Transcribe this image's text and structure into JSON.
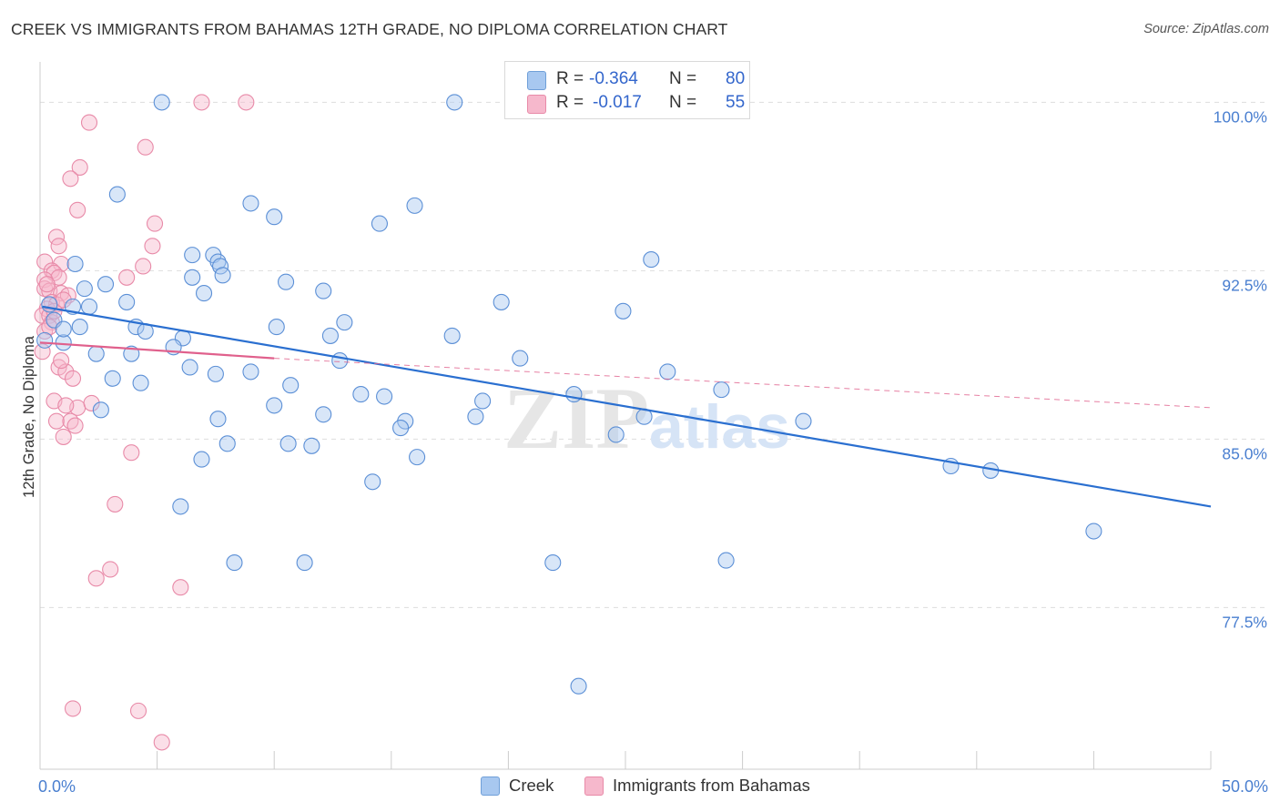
{
  "title": "CREEK VS IMMIGRANTS FROM BAHAMAS 12TH GRADE, NO DIPLOMA CORRELATION CHART",
  "source": "Source: ZipAtlas.com",
  "watermark": {
    "part1": "ZIP",
    "part2": "atlas"
  },
  "legend_top": {
    "rows": [
      {
        "r_label": "R =",
        "r_value": "-0.364",
        "n_label": "N =",
        "n_value": "80",
        "color": "#a8c8f0",
        "stroke": "#6f9fd8"
      },
      {
        "r_label": "R =",
        "r_value": "-0.017",
        "n_label": "N =",
        "n_value": "55",
        "color": "#f6b8cc",
        "stroke": "#e88aa8"
      }
    ]
  },
  "legend_bottom": [
    {
      "label": "Creek",
      "color": "#a8c8f0",
      "stroke": "#6f9fd8"
    },
    {
      "label": "Immigrants from Bahamas",
      "color": "#f6b8cc",
      "stroke": "#e88aa8"
    }
  ],
  "colors": {
    "creek": "#5b8fd6",
    "creek_line": "#2a6fd0",
    "bahamas": "#e99ab4",
    "bahamas_line": "#e0608c",
    "axis_text": "#4a7fd0",
    "grid": "#dddddd"
  },
  "chart_data": {
    "type": "scatter",
    "title": "CREEK VS IMMIGRANTS FROM BAHAMAS 12TH GRADE, NO DIPLOMA CORRELATION CHART",
    "xlabel": "",
    "ylabel": "12th Grade, No Diploma",
    "xlim": [
      0,
      50
    ],
    "ylim": [
      70.3,
      101.8
    ],
    "x_tick_labels": [
      "0.0%",
      "50.0%"
    ],
    "y_ticks": [
      77.5,
      85.0,
      92.5,
      100.0
    ],
    "y_tick_labels": [
      "77.5%",
      "85.0%",
      "92.5%",
      "100.0%"
    ],
    "series": [
      {
        "name": "Creek",
        "r": -0.364,
        "n": 80,
        "trend": {
          "x": [
            0.1,
            50.0
          ],
          "y": [
            90.9,
            82.0
          ],
          "dashed_extension": false
        },
        "points": [
          [
            5.2,
            100.0
          ],
          [
            17.7,
            100.0
          ],
          [
            3.3,
            95.9
          ],
          [
            9.0,
            95.5
          ],
          [
            10.0,
            94.9
          ],
          [
            16.0,
            95.4
          ],
          [
            14.5,
            94.6
          ],
          [
            6.5,
            93.2
          ],
          [
            7.4,
            93.2
          ],
          [
            7.6,
            92.9
          ],
          [
            7.7,
            92.7
          ],
          [
            6.5,
            92.2
          ],
          [
            26.1,
            93.0
          ],
          [
            1.5,
            92.8
          ],
          [
            7.8,
            92.3
          ],
          [
            10.5,
            92.0
          ],
          [
            2.8,
            91.9
          ],
          [
            1.9,
            91.7
          ],
          [
            7.0,
            91.5
          ],
          [
            19.7,
            91.1
          ],
          [
            3.7,
            91.1
          ],
          [
            1.4,
            90.9
          ],
          [
            0.4,
            91.0
          ],
          [
            2.1,
            90.9
          ],
          [
            0.6,
            90.3
          ],
          [
            1.7,
            90.0
          ],
          [
            4.1,
            90.0
          ],
          [
            10.1,
            90.0
          ],
          [
            24.9,
            90.7
          ],
          [
            4.5,
            89.8
          ],
          [
            12.4,
            89.6
          ],
          [
            6.1,
            89.5
          ],
          [
            1.0,
            89.3
          ],
          [
            5.7,
            89.1
          ],
          [
            2.4,
            88.8
          ],
          [
            3.9,
            88.8
          ],
          [
            12.8,
            88.5
          ],
          [
            6.4,
            88.2
          ],
          [
            7.5,
            87.9
          ],
          [
            9.0,
            88.0
          ],
          [
            3.1,
            87.7
          ],
          [
            4.3,
            87.5
          ],
          [
            10.7,
            87.4
          ],
          [
            29.1,
            87.2
          ],
          [
            13.7,
            87.0
          ],
          [
            14.7,
            86.9
          ],
          [
            22.8,
            87.0
          ],
          [
            18.9,
            86.7
          ],
          [
            10.0,
            86.5
          ],
          [
            2.6,
            86.3
          ],
          [
            7.6,
            85.9
          ],
          [
            12.1,
            86.1
          ],
          [
            15.6,
            85.8
          ],
          [
            18.6,
            86.0
          ],
          [
            25.8,
            86.0
          ],
          [
            32.6,
            85.8
          ],
          [
            15.4,
            85.5
          ],
          [
            24.6,
            85.2
          ],
          [
            8.0,
            84.8
          ],
          [
            10.6,
            84.8
          ],
          [
            11.6,
            84.7
          ],
          [
            6.9,
            84.1
          ],
          [
            16.1,
            84.2
          ],
          [
            38.9,
            83.8
          ],
          [
            40.6,
            83.6
          ],
          [
            14.2,
            83.1
          ],
          [
            6.0,
            82.0
          ],
          [
            45.0,
            80.9
          ],
          [
            8.3,
            79.5
          ],
          [
            11.3,
            79.5
          ],
          [
            21.9,
            79.5
          ],
          [
            29.3,
            79.6
          ],
          [
            23.0,
            74.0
          ],
          [
            17.6,
            89.6
          ],
          [
            13.0,
            90.2
          ],
          [
            20.5,
            88.6
          ],
          [
            26.8,
            88.0
          ],
          [
            0.2,
            89.4
          ],
          [
            1.0,
            89.9
          ],
          [
            12.1,
            91.6
          ]
        ]
      },
      {
        "name": "Immigrants from Bahamas",
        "r": -0.017,
        "n": 55,
        "trend": {
          "x": [
            0.0,
            10.0
          ],
          "y": [
            89.3,
            88.6
          ],
          "dashed_extension_to": [
            50.0,
            86.4
          ]
        },
        "points": [
          [
            6.9,
            100.0
          ],
          [
            8.8,
            100.0
          ],
          [
            2.1,
            99.1
          ],
          [
            4.5,
            98.0
          ],
          [
            1.7,
            97.1
          ],
          [
            1.3,
            96.6
          ],
          [
            1.6,
            95.2
          ],
          [
            4.9,
            94.6
          ],
          [
            0.7,
            94.0
          ],
          [
            0.8,
            93.6
          ],
          [
            4.8,
            93.6
          ],
          [
            0.2,
            92.9
          ],
          [
            0.9,
            92.8
          ],
          [
            4.4,
            92.7
          ],
          [
            0.5,
            92.5
          ],
          [
            0.6,
            92.4
          ],
          [
            0.8,
            92.2
          ],
          [
            3.7,
            92.2
          ],
          [
            0.2,
            92.1
          ],
          [
            0.2,
            91.7
          ],
          [
            0.4,
            91.6
          ],
          [
            0.9,
            91.5
          ],
          [
            1.2,
            91.4
          ],
          [
            0.5,
            91.1
          ],
          [
            0.7,
            91.0
          ],
          [
            0.3,
            90.8
          ],
          [
            0.1,
            90.5
          ],
          [
            0.4,
            90.5
          ],
          [
            0.5,
            90.2
          ],
          [
            0.2,
            89.8
          ],
          [
            0.1,
            88.9
          ],
          [
            0.8,
            88.2
          ],
          [
            1.1,
            88.0
          ],
          [
            1.4,
            87.7
          ],
          [
            0.6,
            86.7
          ],
          [
            1.6,
            86.4
          ],
          [
            1.1,
            86.5
          ],
          [
            2.2,
            86.6
          ],
          [
            0.7,
            85.8
          ],
          [
            1.3,
            85.8
          ],
          [
            1.5,
            85.6
          ],
          [
            1.0,
            85.1
          ],
          [
            3.9,
            84.4
          ],
          [
            3.2,
            82.1
          ],
          [
            3.0,
            79.2
          ],
          [
            2.4,
            78.8
          ],
          [
            6.0,
            78.4
          ],
          [
            1.4,
            73.0
          ],
          [
            4.2,
            72.9
          ],
          [
            5.2,
            71.5
          ],
          [
            0.3,
            91.9
          ],
          [
            0.6,
            90.7
          ],
          [
            1.0,
            91.2
          ],
          [
            0.4,
            90.0
          ],
          [
            0.9,
            88.5
          ]
        ]
      }
    ]
  }
}
